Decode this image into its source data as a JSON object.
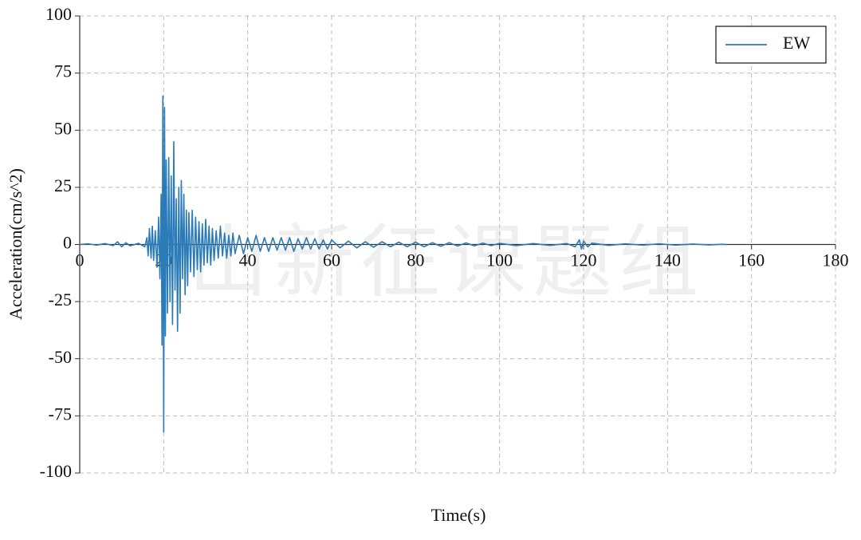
{
  "chart_data": {
    "type": "line",
    "xlabel": "Time(s)",
    "ylabel": "Acceleration(cm/s^2)",
    "watermark": "山新征课题组",
    "xlim": [
      0,
      180
    ],
    "xticks": [
      0,
      20,
      40,
      60,
      80,
      100,
      120,
      140,
      160,
      180
    ],
    "ylim": [
      -100,
      100
    ],
    "yticks": [
      -100,
      -75,
      -50,
      -25,
      0,
      25,
      50,
      75,
      100
    ],
    "grid": true,
    "legend": "upper right",
    "x": [
      0,
      2,
      4,
      6,
      8,
      9,
      10,
      11,
      12,
      14,
      15.5,
      16,
      16.3,
      16.6,
      17,
      17.3,
      17.6,
      18,
      18.4,
      18.8,
      19.1,
      19.4,
      19.6,
      19.8,
      20,
      20.2,
      20.4,
      20.6,
      20.9,
      21.2,
      21.5,
      21.8,
      22.1,
      22.4,
      22.7,
      23,
      23.3,
      23.6,
      23.9,
      24.2,
      24.5,
      24.8,
      25.1,
      25.4,
      25.7,
      26,
      26.4,
      26.8,
      27.2,
      27.6,
      28,
      28.4,
      28.8,
      29.2,
      29.6,
      30,
      30.4,
      30.8,
      31.2,
      31.6,
      32,
      32.5,
      33,
      33.5,
      34,
      34.5,
      35,
      35.5,
      36,
      36.5,
      37,
      38,
      39,
      40,
      41,
      42,
      43,
      44,
      45,
      46,
      47,
      48,
      49,
      50,
      51,
      52,
      53,
      54,
      55,
      56,
      57,
      58,
      59,
      60,
      62,
      64,
      66,
      68,
      70,
      72,
      74,
      76,
      78,
      80,
      82,
      84,
      86,
      88,
      90,
      92,
      94,
      96,
      98,
      100,
      104,
      108,
      112,
      116,
      118,
      119,
      119.5,
      120,
      121,
      122,
      126,
      130,
      134,
      138,
      142,
      146,
      150,
      153,
      154
    ],
    "series": [
      {
        "name": "EW",
        "color": "#2b7bb9",
        "values": [
          0,
          0.3,
          -0.3,
          0.4,
          -0.5,
          1.2,
          -1,
          0.8,
          -0.6,
          0.5,
          -1,
          3,
          -5,
          7,
          -6,
          8,
          -7,
          6,
          -10,
          12,
          -15,
          22,
          -44,
          65,
          -82,
          60,
          -40,
          37,
          -30,
          38,
          -25,
          30,
          -35,
          45,
          -20,
          20,
          -38,
          25,
          -30,
          28,
          -15,
          22,
          -22,
          15,
          -18,
          14,
          -12,
          15,
          -14,
          12,
          -11,
          10,
          -12,
          9,
          -9,
          11,
          -8,
          8,
          -9,
          7,
          -7,
          6,
          -6,
          8,
          -5,
          5,
          -6,
          4,
          -5,
          5,
          -4,
          4,
          -4,
          3,
          -3,
          4,
          -3,
          3,
          -3,
          3,
          -2.5,
          3,
          -2.5,
          3,
          -3,
          2.5,
          -2,
          3,
          -2,
          2.5,
          -2,
          2,
          -2,
          2,
          -1.5,
          1.5,
          -1.5,
          1.2,
          -1.2,
          1.2,
          -1,
          1,
          -1,
          1,
          -1,
          0.8,
          -0.8,
          0.8,
          -0.7,
          0.7,
          -0.6,
          0.6,
          -0.5,
          0.5,
          -0.5,
          0.4,
          -0.4,
          0.4,
          -1,
          2,
          -2,
          1.5,
          -1,
          0.6,
          -0.4,
          0.3,
          -0.3,
          0.3,
          -0.3,
          0.2,
          -0.2,
          0.1,
          0
        ]
      }
    ]
  }
}
